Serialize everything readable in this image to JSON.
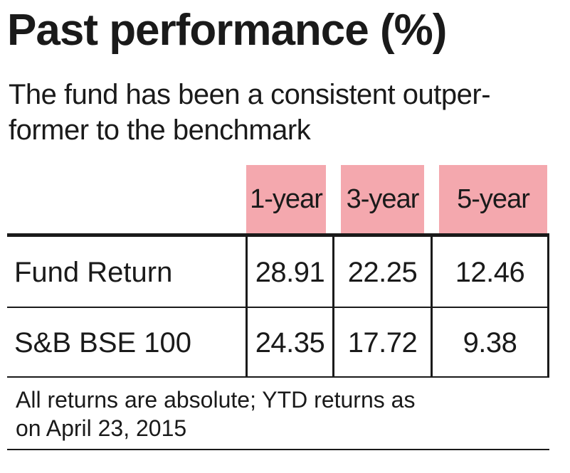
{
  "chart_data": {
    "type": "table",
    "title": "Past performance (%)",
    "subtitle_lines": [
      "The fund has been a consistent outper-",
      "former to the benchmark"
    ],
    "columns": [
      "1-year",
      "3-year",
      "5-year"
    ],
    "rows": [
      {
        "label": "Fund Return",
        "values": [
          "28.91",
          "22.25",
          "12.46"
        ]
      },
      {
        "label": "S&B BSE 100",
        "values": [
          "24.35",
          "17.72",
          "9.38"
        ]
      }
    ],
    "note_lines": [
      "All returns are absolute; YTD returns as",
      "on April 23, 2015"
    ]
  },
  "colors": {
    "header_fill": "#f4a8ae",
    "rule": "#1a1a1a"
  }
}
